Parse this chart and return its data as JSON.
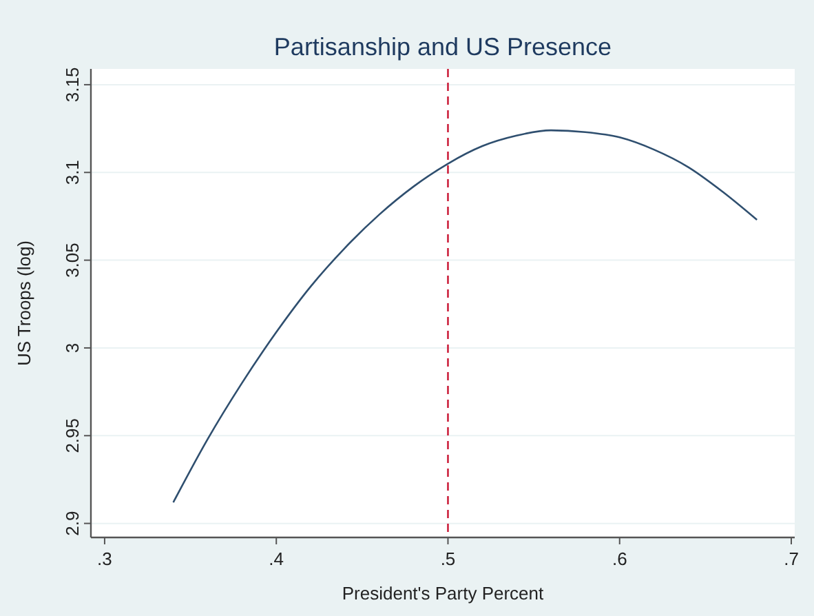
{
  "chart_data": {
    "type": "line",
    "title": "Partisanship and US Presence",
    "xlabel": "President's Party Percent",
    "ylabel": "US Troops (log)",
    "x": [
      0.34,
      0.36,
      0.38,
      0.4,
      0.42,
      0.44,
      0.46,
      0.48,
      0.5,
      0.52,
      0.54,
      0.56,
      0.58,
      0.6,
      0.62,
      0.64,
      0.66,
      0.68
    ],
    "series": [
      {
        "color": "#2f4f6f",
        "values": [
          2.912,
          2.948,
          2.98,
          3.009,
          3.035,
          3.057,
          3.076,
          3.092,
          3.105,
          3.115,
          3.121,
          3.124,
          3.123,
          3.12,
          3.113,
          3.103,
          3.089,
          3.073
        ]
      }
    ],
    "xlim": [
      0.292,
      0.702
    ],
    "ylim": [
      2.892,
      3.159
    ],
    "xticks": [
      {
        "value": 0.3,
        "label": ".3"
      },
      {
        "value": 0.4,
        "label": ".4"
      },
      {
        "value": 0.5,
        "label": ".5"
      },
      {
        "value": 0.6,
        "label": ".6"
      },
      {
        "value": 0.7,
        "label": ".7"
      }
    ],
    "yticks": [
      2.9,
      2.95,
      3,
      3.05,
      3.1,
      3.15
    ],
    "ref_lines": [
      {
        "axis": "x",
        "value": 0.5,
        "color": "#c8102e",
        "line_style": "dashed"
      }
    ],
    "grid": "y",
    "marker": "none",
    "line_style": "solid"
  }
}
